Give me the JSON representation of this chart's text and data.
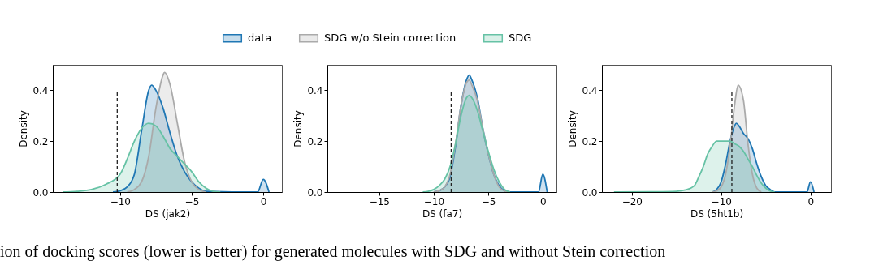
{
  "chart_data": [
    {
      "type": "area",
      "xlabel": "DS (jak2)",
      "ylabel": "Density",
      "xlim": [
        -14.7,
        1.3
      ],
      "ylim": [
        0,
        0.5
      ],
      "xticks": [
        -10,
        -5,
        0
      ],
      "yticks": [
        {
          "value": 0,
          "label": "0.0"
        },
        {
          "value": 0.2,
          "label": "0.2"
        },
        {
          "value": 0.4,
          "label": "0.4"
        }
      ],
      "legend": "top",
      "grid": false,
      "ref_lines": [
        {
          "axis": "x",
          "value": -10.2,
          "label": null,
          "color": "#222222",
          "line_style": "dashed"
        }
      ],
      "annotations": [
        "ion of docking scores (lower is better) for generated molecules with SDG and without Stein correction"
      ],
      "series": [
        {
          "name": "data",
          "color": "#1f77b4",
          "x": [
            -10.5,
            -10,
            -9.5,
            -9,
            -8.5,
            -8,
            -7.8,
            -7.5,
            -7,
            -6.5,
            -6,
            -5.5,
            -5,
            -4.5,
            -4,
            -0.4,
            0,
            0.4
          ],
          "values": [
            0,
            0.005,
            0.02,
            0.07,
            0.24,
            0.4,
            0.42,
            0.4,
            0.33,
            0.23,
            0.14,
            0.08,
            0.04,
            0.015,
            0.003,
            0,
            0.05,
            0
          ]
        },
        {
          "name": "SDG w/o Stein correction",
          "color": "#aaaaaa",
          "x": [
            -9.5,
            -9,
            -8.5,
            -8,
            -7.5,
            -7,
            -6.9,
            -6.5,
            -6,
            -5.5,
            -5,
            -4.5,
            -4
          ],
          "values": [
            0,
            0.01,
            0.04,
            0.14,
            0.33,
            0.46,
            0.47,
            0.42,
            0.27,
            0.12,
            0.04,
            0.01,
            0
          ]
        },
        {
          "name": "SDG",
          "color": "#66c2a5",
          "x": [
            -14,
            -13,
            -12,
            -11,
            -10,
            -9.5,
            -9,
            -8.5,
            -8,
            -7.5,
            -7,
            -6.5,
            -6,
            -5.5,
            -5,
            -4.5,
            -4,
            -3.5,
            -3
          ],
          "values": [
            0,
            0.003,
            0.01,
            0.03,
            0.07,
            0.13,
            0.2,
            0.25,
            0.27,
            0.26,
            0.22,
            0.17,
            0.14,
            0.11,
            0.08,
            0.04,
            0.015,
            0.003,
            0
          ]
        }
      ]
    },
    {
      "type": "area",
      "xlabel": "DS (fa7)",
      "ylabel": "Density",
      "xlim": [
        -19.75,
        1.25
      ],
      "ylim": [
        0,
        0.5
      ],
      "xticks": [
        -15,
        -10,
        -5,
        0
      ],
      "yticks": [
        {
          "value": 0,
          "label": "0.0"
        },
        {
          "value": 0.2,
          "label": "0.2"
        },
        {
          "value": 0.4,
          "label": "0.4"
        }
      ],
      "grid": false,
      "ref_lines": [
        {
          "axis": "x",
          "value": -8.4,
          "label": null,
          "color": "#222222",
          "line_style": "dashed"
        }
      ],
      "series": [
        {
          "color": "#1f77b4",
          "x": [
            -10,
            -9.5,
            -9,
            -8.5,
            -8,
            -7.5,
            -7,
            -6.75,
            -6.5,
            -6,
            -5.5,
            -5,
            -4.5,
            -4,
            -3.5,
            -3,
            -0.4,
            0,
            0.4
          ],
          "values": [
            0,
            0.005,
            0.02,
            0.06,
            0.18,
            0.34,
            0.44,
            0.46,
            0.44,
            0.37,
            0.25,
            0.15,
            0.07,
            0.025,
            0.005,
            0,
            0,
            0.07,
            0
          ]
        },
        {
          "color": "#aaaaaa",
          "x": [
            -10,
            -9.5,
            -9,
            -8.5,
            -8,
            -7.5,
            -7,
            -6.75,
            -6.5,
            -6,
            -5.5,
            -5,
            -4.5,
            -4,
            -3.5,
            -3
          ],
          "values": [
            0,
            0.005,
            0.02,
            0.07,
            0.19,
            0.34,
            0.43,
            0.44,
            0.42,
            0.36,
            0.25,
            0.15,
            0.07,
            0.02,
            0.004,
            0
          ]
        },
        {
          "color": "#66c2a5",
          "x": [
            -11,
            -10.5,
            -10,
            -9.5,
            -9,
            -8.5,
            -8,
            -7.5,
            -7,
            -6.75,
            -6.5,
            -6,
            -5.5,
            -5,
            -4.5,
            -4,
            -3.5,
            -3
          ],
          "values": [
            0,
            0.003,
            0.01,
            0.025,
            0.05,
            0.1,
            0.19,
            0.3,
            0.37,
            0.38,
            0.37,
            0.32,
            0.24,
            0.16,
            0.09,
            0.04,
            0.01,
            0
          ]
        }
      ]
    },
    {
      "type": "area",
      "xlabel": "DS (5ht1b)",
      "ylabel": "Density",
      "xlim": [
        -23.35,
        2.3
      ],
      "ylim": [
        0,
        0.5
      ],
      "xticks": [
        -20,
        -10,
        0
      ],
      "yticks": [
        {
          "value": 0,
          "label": "0.0"
        },
        {
          "value": 0.2,
          "label": "0.2"
        },
        {
          "value": 0.4,
          "label": "0.4"
        }
      ],
      "grid": false,
      "ref_lines": [
        {
          "axis": "x",
          "value": -8.8,
          "label": null,
          "color": "#222222",
          "line_style": "dashed"
        }
      ],
      "series": [
        {
          "color": "#1f77b4",
          "x": [
            -11,
            -10.5,
            -10,
            -9.5,
            -9,
            -8.5,
            -8.3,
            -8,
            -7.5,
            -7,
            -6.5,
            -6,
            -5.5,
            -5,
            -4.5,
            -4,
            -0.4,
            0,
            0.4
          ],
          "values": [
            0,
            0.01,
            0.04,
            0.11,
            0.2,
            0.26,
            0.27,
            0.26,
            0.23,
            0.21,
            0.17,
            0.11,
            0.06,
            0.025,
            0.01,
            0,
            0,
            0.04,
            0
          ]
        },
        {
          "color": "#aaaaaa",
          "x": [
            -11,
            -10.5,
            -10,
            -9.5,
            -9,
            -8.5,
            -8.1,
            -7.5,
            -7,
            -6.5,
            -6,
            -5.5
          ],
          "values": [
            0,
            0.005,
            0.02,
            0.07,
            0.18,
            0.34,
            0.42,
            0.36,
            0.19,
            0.07,
            0.015,
            0
          ]
        },
        {
          "color": "#66c2a5",
          "x": [
            -22,
            -18,
            -15,
            -14,
            -13,
            -12.5,
            -12,
            -11.5,
            -11,
            -10.5,
            -10,
            -9.5,
            -9,
            -8.5,
            -8,
            -7.5,
            -7,
            -6.5,
            -6,
            -5.5,
            -5,
            -4.5,
            -4
          ],
          "values": [
            0,
            0.001,
            0.003,
            0.008,
            0.025,
            0.06,
            0.1,
            0.15,
            0.18,
            0.2,
            0.2,
            0.2,
            0.2,
            0.19,
            0.18,
            0.16,
            0.13,
            0.1,
            0.065,
            0.035,
            0.015,
            0.004,
            0
          ]
        }
      ]
    }
  ]
}
